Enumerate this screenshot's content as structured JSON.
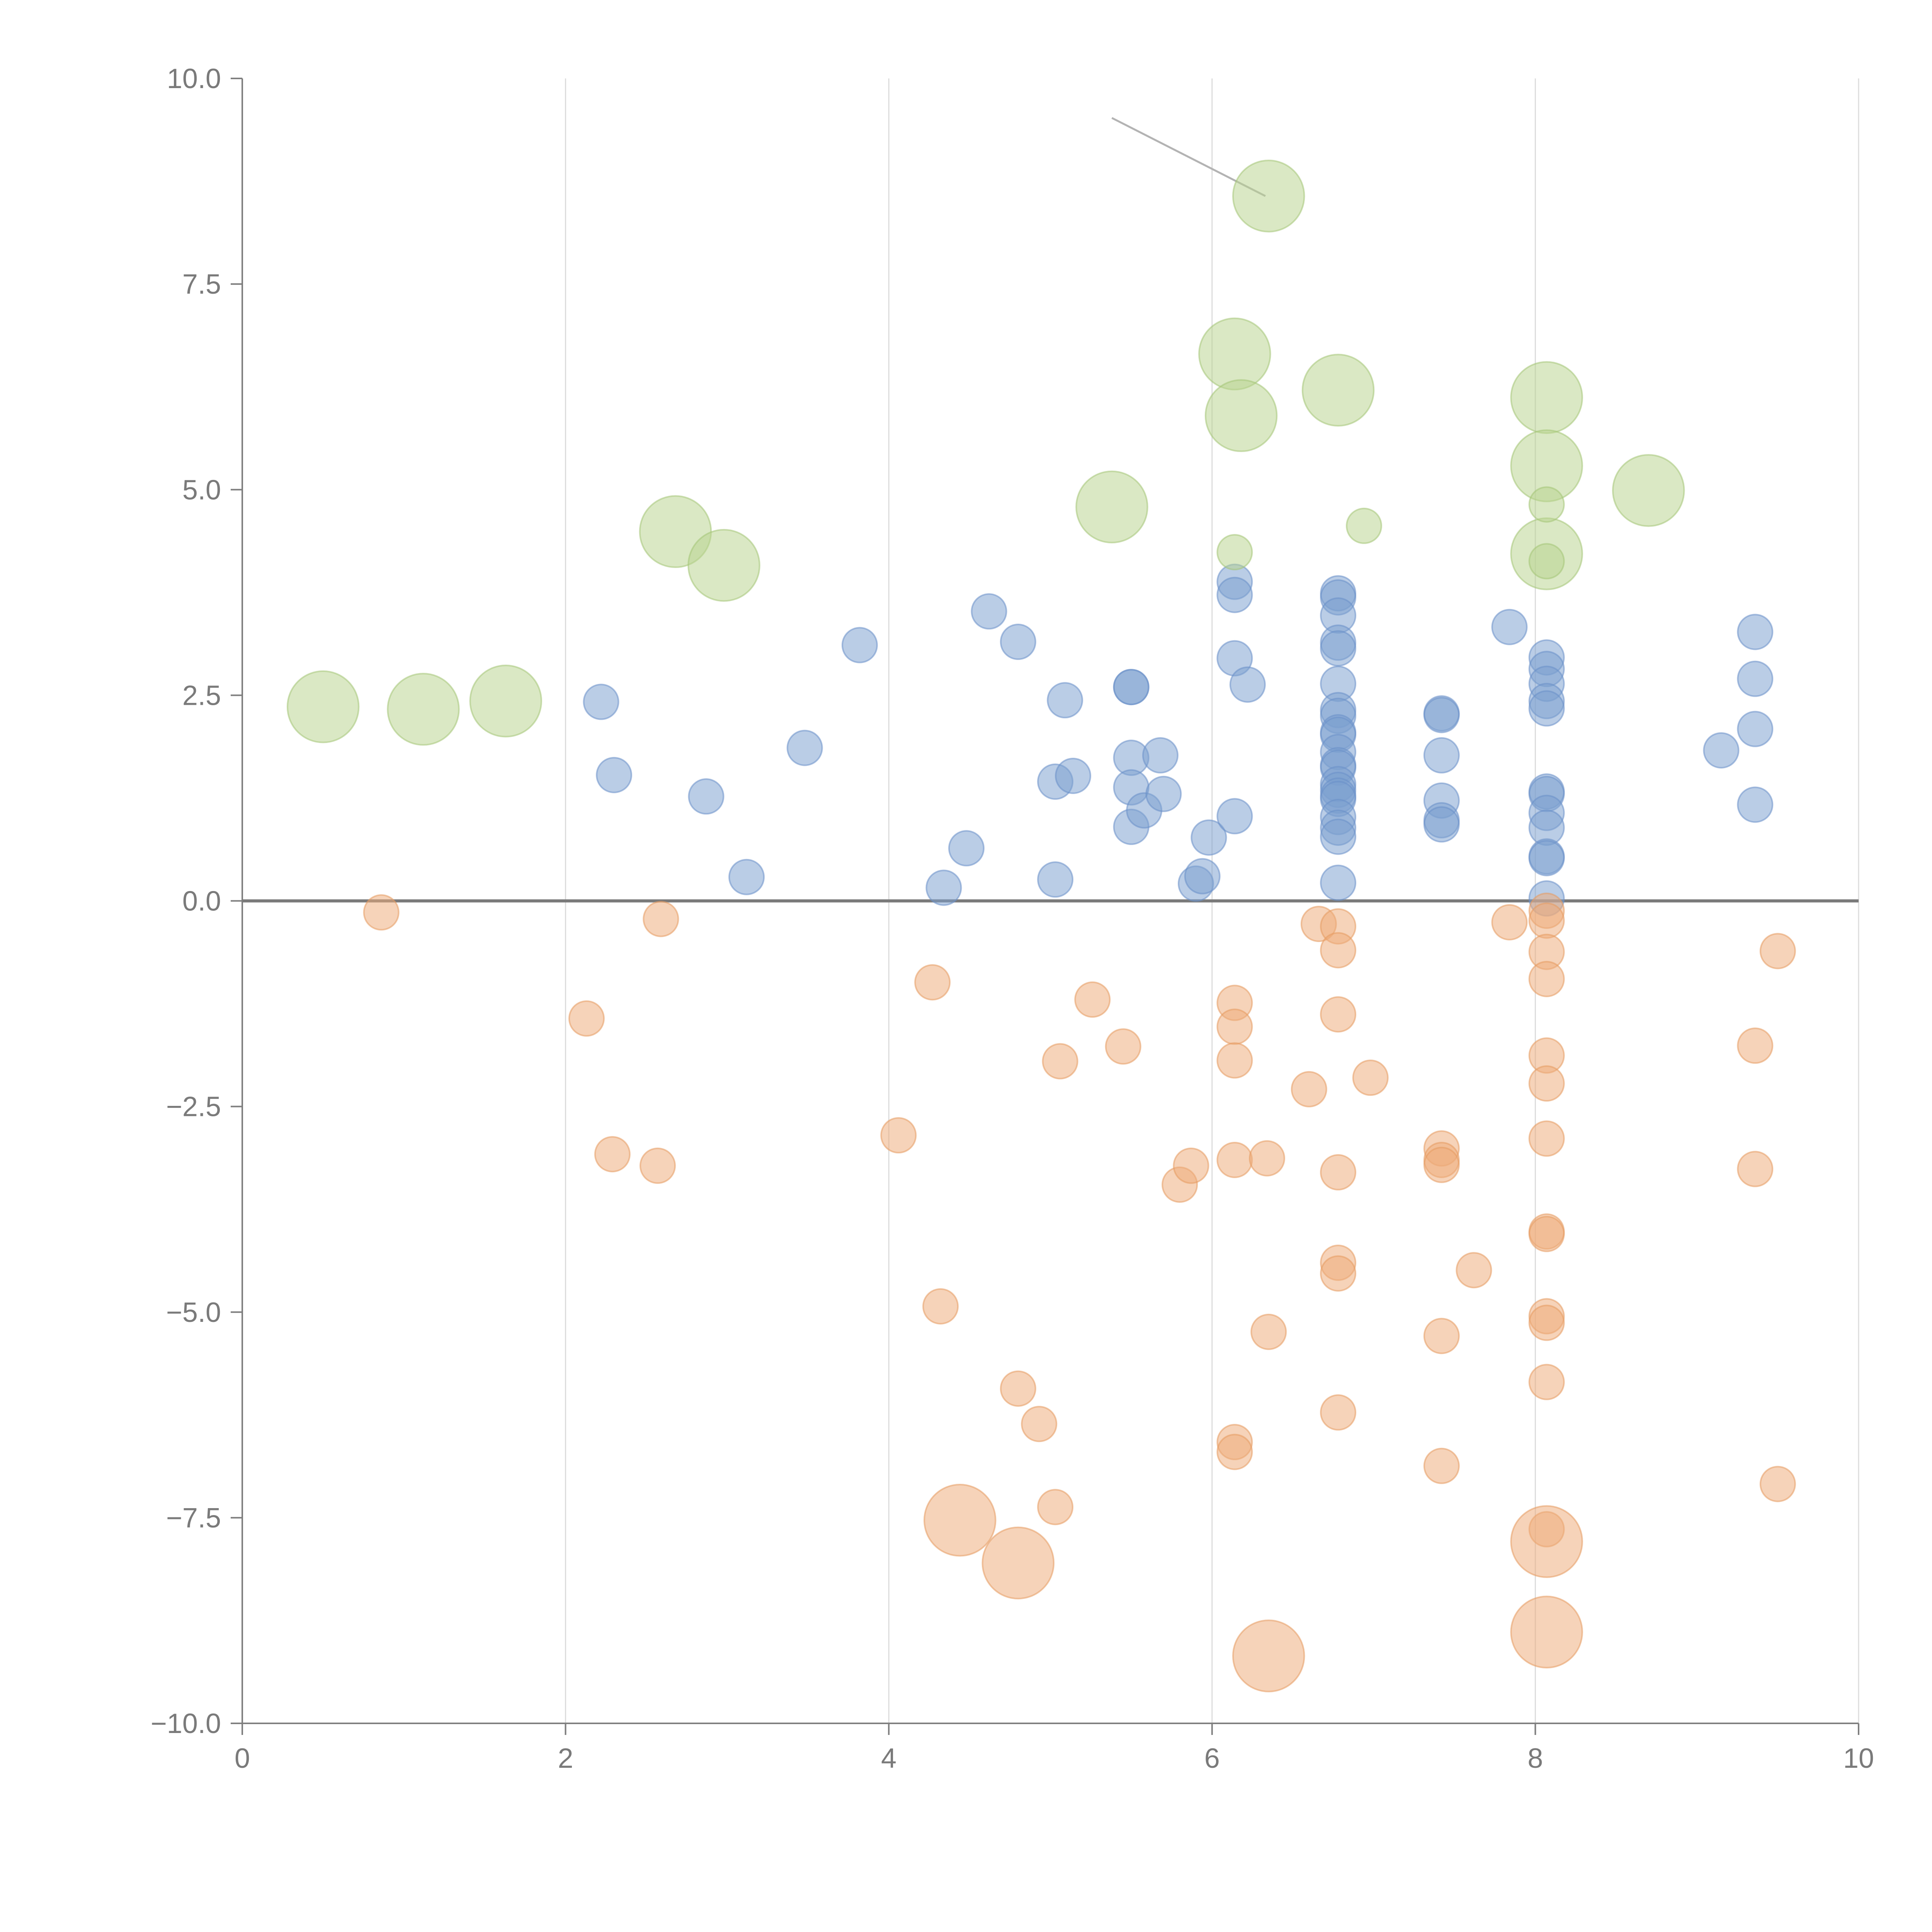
{
  "chart_data": {
    "type": "scatter",
    "title": "",
    "xlabel": "",
    "ylabel": "",
    "xlim": [
      0,
      10
    ],
    "ylim": [
      -10,
      10
    ],
    "x_ticks": [
      0,
      2,
      4,
      6,
      8,
      10
    ],
    "y_ticks": [
      -10,
      -7.5,
      -5,
      -2.5,
      0,
      2.5,
      5,
      7.5,
      10
    ],
    "x_tick_labels": [
      "0",
      "2",
      "4",
      "6",
      "8",
      "10"
    ],
    "y_tick_labels": [
      "−10.0",
      "−7.5",
      "−5.0",
      "−2.5",
      "0.0",
      "2.5",
      "5.0",
      "7.5",
      "10.0"
    ],
    "grid": {
      "vertical": true,
      "horizontal": false
    },
    "zero_line": true,
    "colors": {
      "blue_fill": "#7b9fd0",
      "blue_stroke": "#6a90c8",
      "orange_fill": "#eeaa78",
      "orange_stroke": "#e69a60",
      "green_fill": "#b9d38e",
      "green_stroke": "#a4c577"
    },
    "size_units": {
      "small": 1,
      "large": 2.05
    },
    "leader_line": {
      "from": [
        5.38,
        9.52
      ],
      "to": [
        6.33,
        8.57
      ]
    },
    "series": [
      {
        "name": "blue",
        "color": "#7b9fd0",
        "points": [
          [
            2.22,
            2.42,
            1
          ],
          [
            2.3,
            1.53,
            1
          ],
          [
            2.87,
            1.27,
            1
          ],
          [
            3.12,
            0.29,
            1
          ],
          [
            3.48,
            1.86,
            1
          ],
          [
            3.82,
            3.11,
            1
          ],
          [
            4.34,
            0.16,
            1
          ],
          [
            4.48,
            0.64,
            1
          ],
          [
            4.62,
            3.52,
            1
          ],
          [
            4.8,
            3.15,
            1
          ],
          [
            5.03,
            1.45,
            1
          ],
          [
            5.03,
            0.26,
            1
          ],
          [
            5.09,
            2.44,
            1
          ],
          [
            5.14,
            1.52,
            1
          ],
          [
            5.5,
            2.6,
            1
          ],
          [
            5.5,
            2.6,
            1
          ],
          [
            5.5,
            1.74,
            1
          ],
          [
            5.5,
            1.38,
            1
          ],
          [
            5.5,
            0.9,
            1
          ],
          [
            5.58,
            1.1,
            1
          ],
          [
            5.68,
            1.77,
            1
          ],
          [
            5.7,
            1.3,
            1
          ],
          [
            5.9,
            0.21,
            1
          ],
          [
            5.94,
            0.3,
            1
          ],
          [
            5.98,
            0.77,
            1
          ],
          [
            6.14,
            3.88,
            1
          ],
          [
            6.14,
            3.72,
            1
          ],
          [
            6.14,
            2.95,
            1
          ],
          [
            6.14,
            1.03,
            1
          ],
          [
            6.22,
            2.63,
            1
          ],
          [
            6.78,
            3.74,
            1
          ],
          [
            6.78,
            3.69,
            1
          ],
          [
            6.78,
            3.47,
            1
          ],
          [
            6.78,
            3.14,
            1
          ],
          [
            6.78,
            3.07,
            1
          ],
          [
            6.78,
            2.64,
            1
          ],
          [
            6.78,
            2.32,
            1
          ],
          [
            6.78,
            2.25,
            1
          ],
          [
            6.78,
            2.05,
            1
          ],
          [
            6.78,
            2.02,
            1
          ],
          [
            6.78,
            1.81,
            1
          ],
          [
            6.78,
            1.65,
            1
          ],
          [
            6.78,
            1.62,
            1
          ],
          [
            6.78,
            1.42,
            1
          ],
          [
            6.78,
            1.35,
            1
          ],
          [
            6.78,
            1.28,
            1
          ],
          [
            6.78,
            1.24,
            1
          ],
          [
            6.78,
            1.02,
            1
          ],
          [
            6.78,
            0.89,
            1
          ],
          [
            6.78,
            0.78,
            1
          ],
          [
            6.78,
            0.22,
            1
          ],
          [
            7.42,
            2.28,
            1
          ],
          [
            7.42,
            2.26,
            1
          ],
          [
            7.42,
            1.77,
            1
          ],
          [
            7.42,
            1.22,
            1
          ],
          [
            7.42,
            0.98,
            1
          ],
          [
            7.42,
            0.93,
            1
          ],
          [
            7.84,
            3.33,
            1
          ],
          [
            8.07,
            2.96,
            1
          ],
          [
            8.07,
            2.82,
            1
          ],
          [
            8.07,
            2.64,
            1
          ],
          [
            8.07,
            2.43,
            1
          ],
          [
            8.07,
            2.34,
            1
          ],
          [
            8.07,
            1.33,
            1
          ],
          [
            8.07,
            1.3,
            1
          ],
          [
            8.07,
            1.07,
            1
          ],
          [
            8.07,
            0.89,
            1
          ],
          [
            8.07,
            0.54,
            1
          ],
          [
            8.07,
            0.52,
            1
          ],
          [
            8.07,
            0.03,
            1
          ],
          [
            9.15,
            1.83,
            1
          ],
          [
            9.36,
            3.27,
            1
          ],
          [
            9.36,
            2.7,
            1
          ],
          [
            9.36,
            2.09,
            1
          ],
          [
            9.36,
            1.17,
            1
          ]
        ]
      },
      {
        "name": "orange",
        "color": "#eeaa78",
        "points": [
          [
            0.86,
            -0.14,
            1
          ],
          [
            2.13,
            -1.43,
            1
          ],
          [
            2.29,
            -3.08,
            1
          ],
          [
            2.57,
            -3.22,
            1
          ],
          [
            2.59,
            -0.22,
            1
          ],
          [
            4.06,
            -2.85,
            1
          ],
          [
            4.27,
            -0.99,
            1
          ],
          [
            4.32,
            -4.93,
            1
          ],
          [
            4.8,
            -5.93,
            1
          ],
          [
            4.93,
            -6.36,
            1
          ],
          [
            5.03,
            -7.37,
            1
          ],
          [
            5.06,
            -1.95,
            1
          ],
          [
            5.26,
            -1.2,
            1
          ],
          [
            5.45,
            -1.77,
            1
          ],
          [
            5.8,
            -3.45,
            1
          ],
          [
            5.87,
            -3.22,
            1
          ],
          [
            6.14,
            -1.24,
            1
          ],
          [
            6.14,
            -1.53,
            1
          ],
          [
            6.14,
            -1.94,
            1
          ],
          [
            6.14,
            -3.15,
            1
          ],
          [
            6.14,
            -6.58,
            1
          ],
          [
            6.14,
            -6.7,
            1
          ],
          [
            6.34,
            -3.13,
            1
          ],
          [
            6.35,
            -5.24,
            1
          ],
          [
            6.6,
            -2.29,
            1
          ],
          [
            6.66,
            -0.28,
            1
          ],
          [
            6.78,
            -0.31,
            1
          ],
          [
            6.78,
            -0.6,
            1
          ],
          [
            6.78,
            -1.38,
            1
          ],
          [
            6.78,
            -3.3,
            1
          ],
          [
            6.78,
            -4.4,
            1
          ],
          [
            6.78,
            -4.53,
            1
          ],
          [
            6.78,
            -6.22,
            1
          ],
          [
            6.98,
            -2.15,
            1
          ],
          [
            7.42,
            -3.01,
            1
          ],
          [
            7.42,
            -3.15,
            1
          ],
          [
            7.42,
            -3.21,
            1
          ],
          [
            7.42,
            -5.29,
            1
          ],
          [
            7.42,
            -6.87,
            1
          ],
          [
            7.62,
            -4.49,
            1
          ],
          [
            7.84,
            -0.26,
            1
          ],
          [
            8.07,
            -0.12,
            1
          ],
          [
            8.07,
            -0.24,
            1
          ],
          [
            8.07,
            -0.62,
            1
          ],
          [
            8.07,
            -0.95,
            1
          ],
          [
            8.07,
            -1.88,
            1
          ],
          [
            8.07,
            -2.22,
            1
          ],
          [
            8.07,
            -2.89,
            1
          ],
          [
            8.07,
            -4.02,
            1
          ],
          [
            8.07,
            -4.05,
            1
          ],
          [
            8.07,
            -5.05,
            1
          ],
          [
            8.07,
            -5.13,
            1
          ],
          [
            8.07,
            -5.85,
            1
          ],
          [
            8.07,
            -7.64,
            1
          ],
          [
            9.36,
            -1.76,
            1
          ],
          [
            9.36,
            -3.26,
            1
          ],
          [
            9.5,
            -0.61,
            1
          ],
          [
            9.5,
            -7.09,
            1
          ],
          [
            4.44,
            -7.53,
            2.05
          ],
          [
            4.8,
            -8.05,
            2.05
          ],
          [
            6.35,
            -9.18,
            2.05
          ],
          [
            8.07,
            -7.79,
            2.05
          ],
          [
            8.07,
            -8.89,
            2.05
          ]
        ]
      },
      {
        "name": "green",
        "color": "#b9d38e",
        "points": [
          [
            0.5,
            2.36,
            2.05
          ],
          [
            1.12,
            2.33,
            2.05
          ],
          [
            1.63,
            2.43,
            2.05
          ],
          [
            2.68,
            4.49,
            2.05
          ],
          [
            2.98,
            4.08,
            2.05
          ],
          [
            5.38,
            4.79,
            2.05
          ],
          [
            6.14,
            6.65,
            2.05
          ],
          [
            6.18,
            5.9,
            2.05
          ],
          [
            6.35,
            8.57,
            2.05
          ],
          [
            6.78,
            6.21,
            2.05
          ],
          [
            8.07,
            6.12,
            2.05
          ],
          [
            8.07,
            5.29,
            2.05
          ],
          [
            8.07,
            4.22,
            2.05
          ],
          [
            8.7,
            4.99,
            2.05
          ],
          [
            6.14,
            4.24,
            1
          ],
          [
            6.94,
            4.56,
            1
          ],
          [
            8.07,
            4.82,
            1
          ],
          [
            8.07,
            4.13,
            1
          ]
        ]
      }
    ]
  }
}
